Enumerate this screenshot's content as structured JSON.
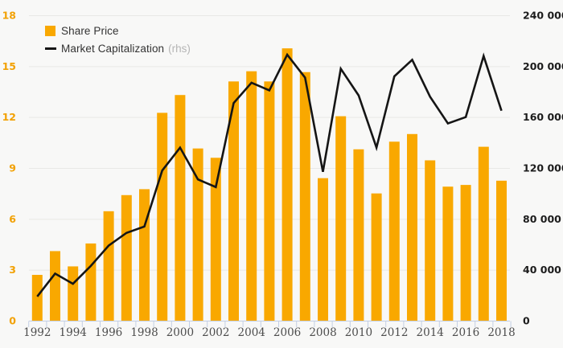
{
  "page": {
    "background": "#f8f8f7"
  },
  "legend": {
    "share_price_label": "Share Price",
    "market_cap_label": "Market Capitalization",
    "market_cap_suffix": "(rhs)"
  },
  "chart_data": {
    "type": "bar+line",
    "title": "",
    "categories": [
      1992,
      1993,
      1994,
      1995,
      1996,
      1997,
      1998,
      1999,
      2000,
      2001,
      2002,
      2003,
      2004,
      2005,
      2006,
      2007,
      2008,
      2009,
      2010,
      2011,
      2012,
      2013,
      2014,
      2015,
      2016,
      2017,
      2018
    ],
    "series": [
      {
        "name": "Share Price",
        "type": "bar",
        "axis": "left",
        "color": "#f9a800",
        "values": [
          2.7,
          4.1,
          3.2,
          4.55,
          6.45,
          7.4,
          7.75,
          12.25,
          13.3,
          10.15,
          9.6,
          14.1,
          14.7,
          14.1,
          16.05,
          14.65,
          8.4,
          12.05,
          10.1,
          7.5,
          10.55,
          11.0,
          9.45,
          7.9,
          8.0,
          10.25,
          8.25
        ]
      },
      {
        "name": "Market Capitalization (rhs)",
        "type": "line",
        "axis": "right",
        "color": "#151515",
        "values": [
          19000,
          37000,
          29000,
          43000,
          59000,
          69000,
          74000,
          118000,
          136000,
          111000,
          105000,
          171000,
          187000,
          181000,
          209000,
          191000,
          117000,
          198000,
          177000,
          136000,
          192000,
          205000,
          176000,
          155000,
          160000,
          208000,
          165000
        ]
      }
    ],
    "left_axis": {
      "range": [
        0,
        18
      ],
      "ticks": [
        0,
        3,
        6,
        9,
        12,
        15,
        18
      ],
      "color": "#f2a104"
    },
    "right_axis": {
      "range": [
        0,
        240000
      ],
      "tick_values": [
        0,
        40000,
        80000,
        120000,
        160000,
        200000,
        240000
      ],
      "tick_labels": [
        "0",
        "40 000",
        "80 000",
        "120 000",
        "160 000",
        "200 000",
        "240 000"
      ],
      "color": "#1c1c1c"
    },
    "x_axis": {
      "labeled_ticks": [
        "1992",
        "1994",
        "1996",
        "1998",
        "2000",
        "2002",
        "2004",
        "2006",
        "2008",
        "2010",
        "2012",
        "2014",
        "2016",
        "2018"
      ]
    },
    "grid": true,
    "grid_color": "#e8e8e6",
    "baseline_color": "#c3cfe4",
    "legend_position": "top-left"
  }
}
